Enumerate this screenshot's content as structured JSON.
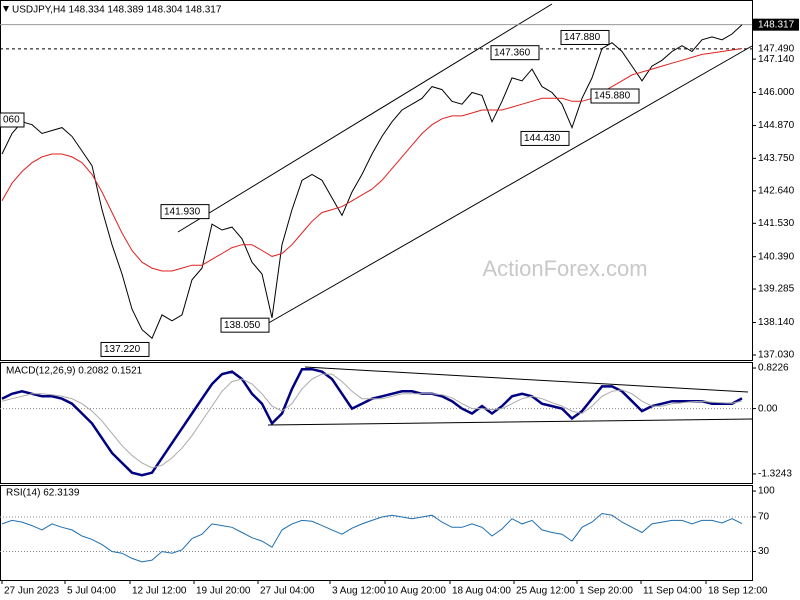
{
  "chart_data": [
    {
      "type": "line",
      "title": "USDJPY,H4  148.334 148.389 148.304 148.317",
      "watermark": "ActionForex.com",
      "xlim": [
        -0.2,
        74.8
      ],
      "ylim": [
        136.86,
        149.16
      ],
      "yticks": [
        {
          "value": 137.03,
          "label": "137.030"
        },
        {
          "value": 138.14,
          "label": "138.140"
        },
        {
          "value": 139.285,
          "label": "139.285"
        },
        {
          "value": 140.39,
          "label": "140.390"
        },
        {
          "value": 141.53,
          "label": "141.530"
        },
        {
          "value": 142.64,
          "label": "142.640"
        },
        {
          "value": 143.75,
          "label": "143.750"
        },
        {
          "value": 144.87,
          "label": "144.870"
        },
        {
          "value": 146,
          "label": "146.000"
        },
        {
          "value": 147.14,
          "label": "147.140"
        }
      ],
      "series": [
        {
          "color": "#000000",
          "values": [
            143.9,
            144.6,
            145.0,
            144.9,
            144.6,
            144.7,
            144.8,
            144.5,
            144.0,
            143.5,
            142.0,
            140.8,
            139.8,
            138.6,
            137.9,
            137.6,
            138.4,
            138.2,
            138.4,
            139.6,
            140.0,
            141.5,
            141.3,
            141.4,
            141.0,
            140.2,
            139.8,
            138.3,
            140.8,
            142.0,
            143.0,
            143.2,
            143.0,
            142.4,
            141.8,
            142.6,
            143.2,
            143.9,
            144.5,
            145.0,
            145.4,
            145.6,
            145.8,
            146.2,
            146.1,
            145.7,
            145.6,
            146.0,
            145.9,
            145.0,
            145.7,
            146.5,
            146.4,
            146.8,
            146.2,
            146.0,
            145.6,
            144.8,
            145.8,
            146.5,
            147.5,
            147.7,
            147.4,
            146.9,
            146.4,
            146.9,
            147.1,
            147.4,
            147.6,
            147.4,
            147.8,
            147.9,
            147.8,
            148.0,
            148.317
          ]
        },
        {
          "color": "#e02020",
          "values": [
            142.3,
            142.9,
            143.3,
            143.6,
            143.8,
            143.9,
            143.9,
            143.8,
            143.6,
            143.2,
            142.6,
            141.9,
            141.2,
            140.6,
            140.2,
            140.0,
            139.9,
            139.9,
            140.0,
            140.1,
            140.1,
            140.3,
            140.5,
            140.7,
            140.8,
            140.8,
            140.6,
            140.4,
            140.5,
            140.8,
            141.2,
            141.6,
            141.9,
            142.0,
            142.1,
            142.3,
            142.5,
            142.7,
            143.0,
            143.4,
            143.8,
            144.2,
            144.6,
            144.9,
            145.1,
            145.2,
            145.2,
            145.3,
            145.4,
            145.4,
            145.4,
            145.5,
            145.6,
            145.7,
            145.8,
            145.8,
            145.8,
            145.7,
            145.7,
            145.8,
            146.0,
            146.2,
            146.4,
            146.6,
            146.7,
            146.8,
            146.9,
            147.0,
            147.1,
            147.2,
            147.3,
            147.35,
            147.4,
            147.45,
            147.5
          ]
        }
      ],
      "annotations": [
        {
          "x": 0,
          "value": 145.06,
          "label": "060"
        },
        {
          "x": 21,
          "value": 141.93,
          "label": "141.930"
        },
        {
          "x": 27,
          "value": 138.05,
          "label": "138.050"
        },
        {
          "x": 15,
          "value": 137.22,
          "label": "137.220"
        },
        {
          "x": 54,
          "value": 147.36,
          "label": "147.360"
        },
        {
          "x": 61,
          "value": 147.88,
          "label": "147.880"
        },
        {
          "x": 57,
          "value": 144.43,
          "label": "144.430"
        },
        {
          "x": 64,
          "value": 145.88,
          "label": "145.880"
        }
      ],
      "last_price": {
        "value": 148.317,
        "label": "148.317"
      },
      "level": {
        "value": 147.49,
        "label": "147.490"
      }
    },
    {
      "type": "line",
      "title": "MACD(12,26,9) 0.2082 0.1521",
      "xlim": [
        -0.2,
        74.8
      ],
      "ylim": [
        -1.508,
        0.945
      ],
      "yticks": [
        0.8226,
        {
          "value": 0,
          "label": "0.00"
        },
        -1.3243
      ],
      "levels": [
        0
      ],
      "series": [
        {
          "color": "#000080",
          "values": [
            0.2,
            0.3,
            0.35,
            0.3,
            0.25,
            0.25,
            0.2,
            0.1,
            -0.1,
            -0.3,
            -0.6,
            -0.9,
            -1.1,
            -1.3,
            -1.35,
            -1.3,
            -1.0,
            -0.7,
            -0.4,
            -0.1,
            0.2,
            0.5,
            0.7,
            0.75,
            0.6,
            0.3,
            0.1,
            -0.3,
            -0.1,
            0.4,
            0.8,
            0.8,
            0.75,
            0.6,
            0.3,
            0.0,
            0.1,
            0.2,
            0.25,
            0.3,
            0.35,
            0.35,
            0.3,
            0.3,
            0.25,
            0.15,
            0.0,
            -0.1,
            0.05,
            -0.1,
            0.05,
            0.25,
            0.3,
            0.25,
            0.1,
            0.05,
            0.0,
            -0.2,
            -0.05,
            0.2,
            0.45,
            0.45,
            0.35,
            0.15,
            -0.05,
            0.05,
            0.1,
            0.15,
            0.15,
            0.15,
            0.15,
            0.1,
            0.1,
            0.1,
            0.2082
          ]
        },
        {
          "color": "#aaaaaa",
          "values": [
            0.15,
            0.2,
            0.25,
            0.3,
            0.3,
            0.28,
            0.25,
            0.2,
            0.1,
            -0.05,
            -0.25,
            -0.5,
            -0.75,
            -0.95,
            -1.1,
            -1.2,
            -1.15,
            -1.0,
            -0.8,
            -0.55,
            -0.25,
            0.05,
            0.35,
            0.55,
            0.6,
            0.5,
            0.3,
            0.05,
            -0.05,
            0.1,
            0.4,
            0.6,
            0.7,
            0.7,
            0.55,
            0.35,
            0.2,
            0.2,
            0.2,
            0.25,
            0.3,
            0.3,
            0.3,
            0.3,
            0.28,
            0.22,
            0.1,
            0.0,
            0.0,
            -0.02,
            0.0,
            0.1,
            0.2,
            0.25,
            0.2,
            0.12,
            0.05,
            -0.05,
            -0.1,
            0.05,
            0.25,
            0.35,
            0.38,
            0.3,
            0.15,
            0.05,
            0.05,
            0.1,
            0.12,
            0.14,
            0.15,
            0.13,
            0.12,
            0.11,
            0.1521
          ]
        }
      ]
    },
    {
      "type": "line",
      "title": "RSI(14) 62.3139",
      "xlim": [
        -0.2,
        74.8
      ],
      "ylim": [
        -3,
        107
      ],
      "yticks": [
        100,
        70,
        30
      ],
      "levels": [
        70,
        30
      ],
      "xticks": [
        {
          "value": 0,
          "label": "27 Jun 2023"
        },
        {
          "value": 6.3,
          "label": "5 Jul 04:00"
        },
        {
          "value": 12.8,
          "label": "12 Jul 12:00"
        },
        {
          "value": 19.2,
          "label": "19 Jul 20:00"
        },
        {
          "value": 25.6,
          "label": "27 Jul 04:00"
        },
        {
          "value": 32.8,
          "label": "3 Aug 12:00"
        },
        {
          "value": 38.3,
          "label": "10 Aug 20:00"
        },
        {
          "value": 44.8,
          "label": "18 Aug 04:00"
        },
        {
          "value": 51.2,
          "label": "25 Aug 12:00"
        },
        {
          "value": 57.5,
          "label": "1 Sep 20:00"
        },
        {
          "value": 63.9,
          "label": "11 Sep 04:00"
        },
        {
          "value": 70.4,
          "label": "18 Sep 12:00"
        }
      ],
      "series": [
        {
          "color": "#1e6fb0",
          "values": [
            62,
            66,
            64,
            60,
            55,
            62,
            58,
            55,
            48,
            44,
            38,
            30,
            28,
            22,
            18,
            20,
            30,
            28,
            32,
            45,
            50,
            62,
            60,
            58,
            52,
            46,
            42,
            35,
            55,
            62,
            66,
            65,
            60,
            55,
            50,
            57,
            62,
            66,
            70,
            72,
            70,
            68,
            70,
            72,
            64,
            58,
            58,
            62,
            58,
            48,
            56,
            68,
            62,
            66,
            55,
            52,
            50,
            42,
            58,
            64,
            74,
            72,
            64,
            58,
            52,
            62,
            64,
            66,
            66,
            62,
            66,
            66,
            63,
            68,
            62.3139
          ]
        }
      ]
    }
  ]
}
